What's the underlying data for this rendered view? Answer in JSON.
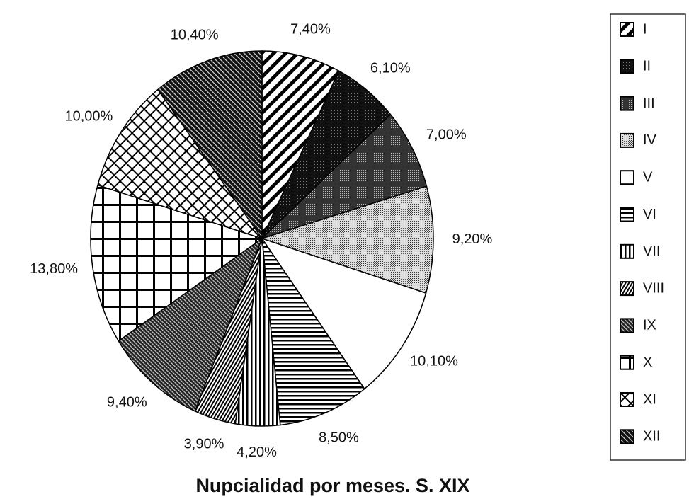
{
  "chart_data": {
    "type": "pie",
    "title": "Nupcialidad por meses. S. XIX",
    "categories": [
      "I",
      "II",
      "III",
      "IV",
      "V",
      "VI",
      "VII",
      "VIII",
      "IX",
      "X",
      "XI",
      "XII"
    ],
    "values": [
      7.4,
      6.1,
      7.0,
      9.2,
      10.1,
      8.5,
      4.2,
      3.9,
      9.4,
      13.8,
      10.0,
      10.4
    ],
    "value_labels": [
      "7,40%",
      "6,10%",
      "7,00%",
      "9,20%",
      "10,10%",
      "8,50%",
      "4,20%",
      "3,90%",
      "9,40%",
      "13,80%",
      "10,00%",
      "10,40%"
    ],
    "legend": "right"
  }
}
